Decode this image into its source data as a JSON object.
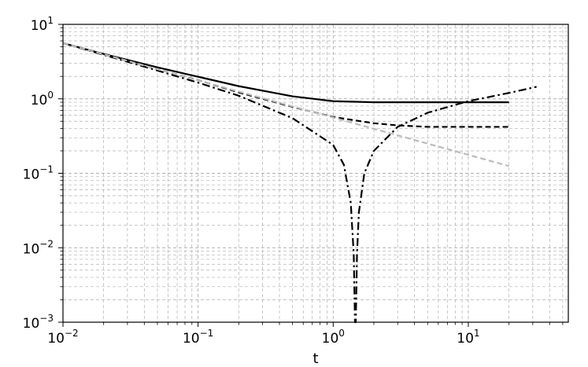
{
  "chart_data": {
    "type": "line",
    "title": "",
    "xlabel": "t",
    "ylabel": "",
    "x_scale": "log",
    "y_scale": "log",
    "xlim": [
      0.01,
      55
    ],
    "ylim": [
      0.001,
      10
    ],
    "grid": "major-and-minor, dashed",
    "legend": "none",
    "x_ticks": [
      {
        "base": "10",
        "exp": "−2",
        "value": 0.01
      },
      {
        "base": "10",
        "exp": "−1",
        "value": 0.1
      },
      {
        "base": "10",
        "exp": "0",
        "value": 1
      },
      {
        "base": "10",
        "exp": "1",
        "value": 10
      }
    ],
    "y_ticks": [
      {
        "base": "10",
        "exp": "−3",
        "value": 0.001
      },
      {
        "base": "10",
        "exp": "−2",
        "value": 0.01
      },
      {
        "base": "10",
        "exp": "−1",
        "value": 0.1
      },
      {
        "base": "10",
        "exp": "0",
        "value": 1
      },
      {
        "base": "10",
        "exp": "1",
        "value": 10
      }
    ],
    "series": [
      {
        "style": "solid",
        "color": "#000000",
        "x": [
          0.01,
          0.02,
          0.05,
          0.1,
          0.2,
          0.5,
          1,
          2,
          5,
          10,
          20
        ],
        "y": [
          5.6,
          4.0,
          2.65,
          1.98,
          1.48,
          1.08,
          0.93,
          0.9,
          0.9,
          0.9,
          0.9
        ]
      },
      {
        "style": "dashed",
        "color": "#000000",
        "x": [
          0.01,
          0.02,
          0.05,
          0.1,
          0.2,
          0.5,
          1,
          2,
          3,
          5,
          10,
          20
        ],
        "y": [
          5.6,
          3.95,
          2.5,
          1.78,
          1.22,
          0.78,
          0.57,
          0.47,
          0.44,
          0.42,
          0.42,
          0.42
        ]
      },
      {
        "style": "dashdot",
        "color": "#000000",
        "x": [
          0.01,
          0.02,
          0.05,
          0.1,
          0.2,
          0.5,
          1,
          1.2,
          1.35,
          1.42,
          1.45,
          1.47,
          1.5,
          1.55,
          1.7,
          2,
          3,
          5,
          10,
          20,
          32
        ],
        "y": [
          5.6,
          3.9,
          2.4,
          1.65,
          1.1,
          0.55,
          0.24,
          0.13,
          0.04,
          0.008,
          0.001,
          0.001,
          0.008,
          0.03,
          0.1,
          0.2,
          0.42,
          0.65,
          0.93,
          1.2,
          1.45
        ]
      },
      {
        "style": "dashed",
        "color": "#bbbbbb",
        "x": [
          0.01,
          0.1,
          1,
          10,
          20
        ],
        "y": [
          5.6,
          1.77,
          0.56,
          0.177,
          0.125
        ]
      }
    ]
  }
}
